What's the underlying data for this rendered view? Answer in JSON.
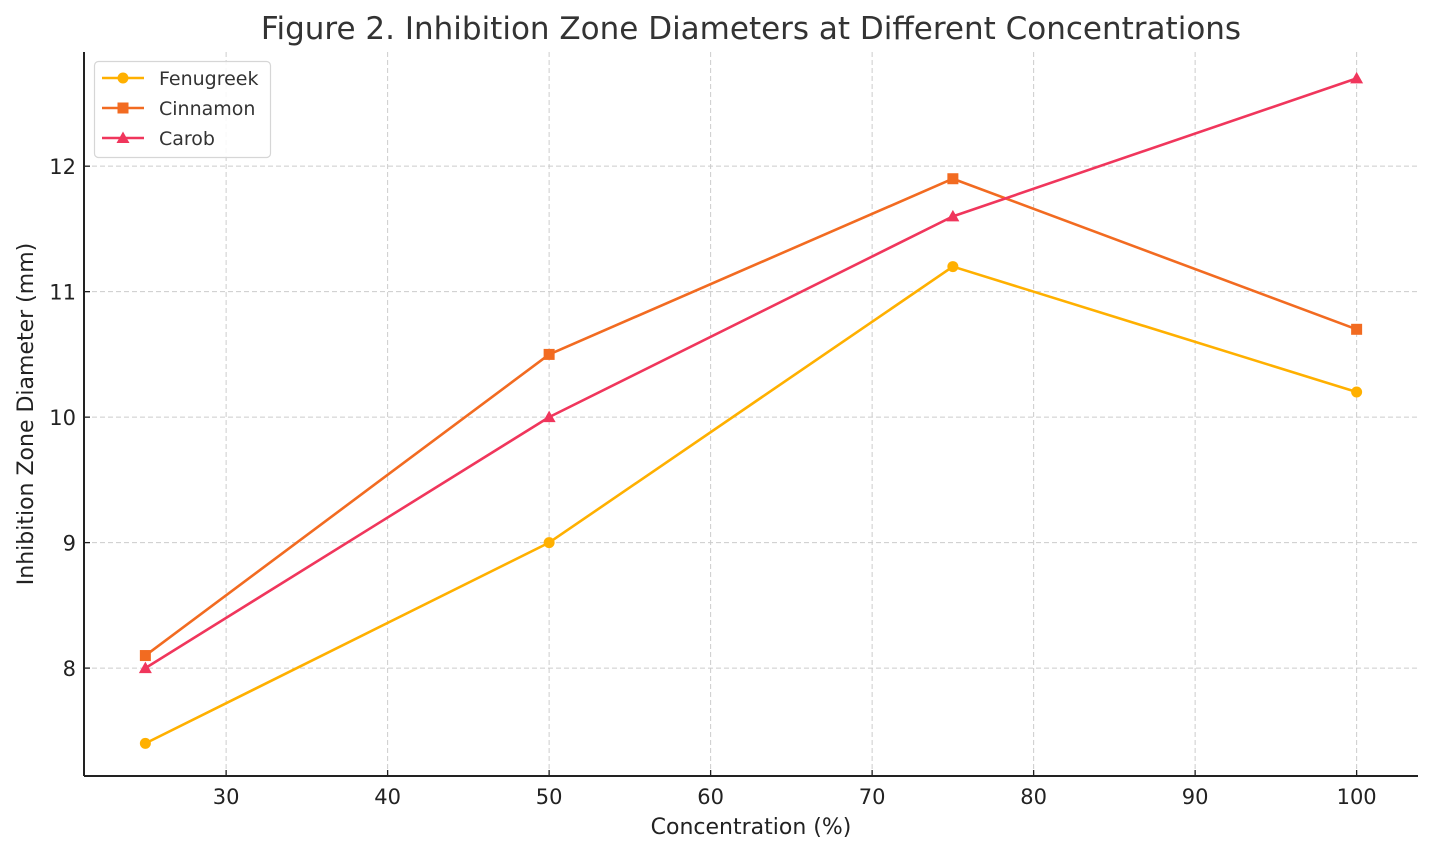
{
  "chart_data": {
    "type": "line",
    "title": "Figure 2. Inhibition Zone Diameters at Different Concentrations",
    "xlabel": "Concentration (%)",
    "ylabel": "Inhibition Zone Diameter (mm)",
    "x": [
      25,
      50,
      75,
      100
    ],
    "xticks": [
      30,
      40,
      50,
      60,
      70,
      80,
      90,
      100
    ],
    "yticks": [
      8,
      9,
      10,
      11,
      12
    ],
    "xlim": [
      21.2,
      103.8
    ],
    "ylim": [
      7.14,
      12.91
    ],
    "grid": true,
    "legend_position": "top-left",
    "series": [
      {
        "name": "Fenugreek",
        "values": [
          7.4,
          9.0,
          11.2,
          10.2
        ],
        "color": "#FFB000",
        "marker": "circle"
      },
      {
        "name": "Cinnamon",
        "values": [
          8.1,
          10.5,
          11.9,
          10.7
        ],
        "color": "#F26B21",
        "marker": "square"
      },
      {
        "name": "Carob",
        "values": [
          8.0,
          10.0,
          11.6,
          12.7
        ],
        "color": "#F0365C",
        "marker": "triangle"
      }
    ]
  }
}
